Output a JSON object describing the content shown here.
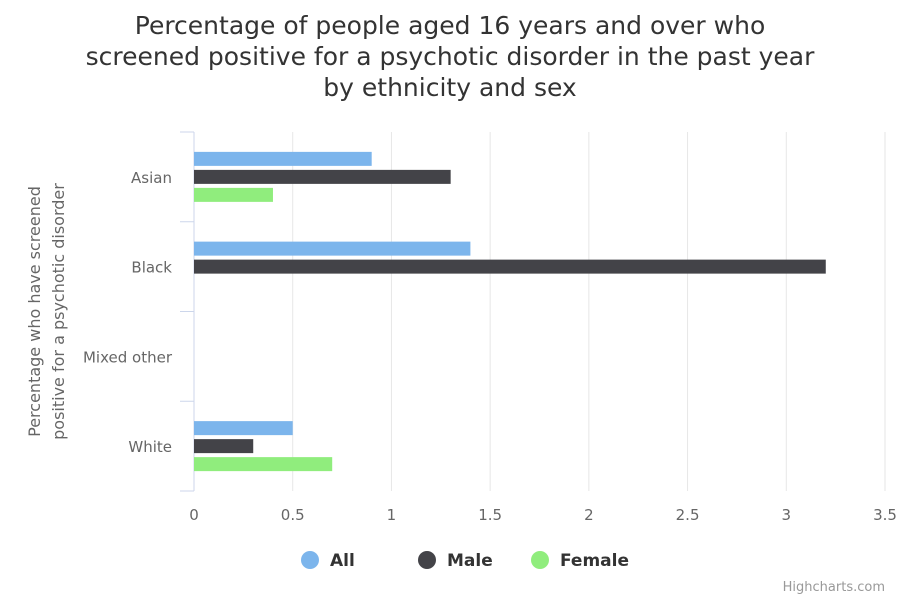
{
  "chart_data": {
    "type": "bar",
    "orientation": "horizontal",
    "title_lines": [
      "Percentage of people aged 16 years and over who",
      "screened positive for a psychotic disorder in the past year",
      "by ethnicity and sex"
    ],
    "ylabel_lines": [
      "Percentage who have screened",
      "positive for a psychotic disorder"
    ],
    "xlabel": "",
    "categories": [
      "Asian",
      "Black",
      "Mixed other",
      "White"
    ],
    "xlim": [
      0,
      3.5
    ],
    "ticks": [
      {
        "value": 0,
        "label": "0"
      },
      {
        "value": 0.5,
        "label": "0.5"
      },
      {
        "value": 1,
        "label": "1"
      },
      {
        "value": 1.5,
        "label": "1.5"
      },
      {
        "value": 2,
        "label": "2"
      },
      {
        "value": 2.5,
        "label": "2.5"
      },
      {
        "value": 3,
        "label": "3"
      },
      {
        "value": 3.5,
        "label": "3.5"
      }
    ],
    "grid": true,
    "legend_position": "bottom-center",
    "series": [
      {
        "name": "All",
        "color": "#7cb5ec",
        "values": [
          0.9,
          1.4,
          null,
          0.5
        ]
      },
      {
        "name": "Male",
        "color": "#434348",
        "values": [
          1.3,
          3.2,
          null,
          0.3
        ]
      },
      {
        "name": "Female",
        "color": "#90ed7d",
        "values": [
          0.4,
          null,
          null,
          0.7
        ]
      }
    ]
  },
  "credits": "Highcharts.com"
}
